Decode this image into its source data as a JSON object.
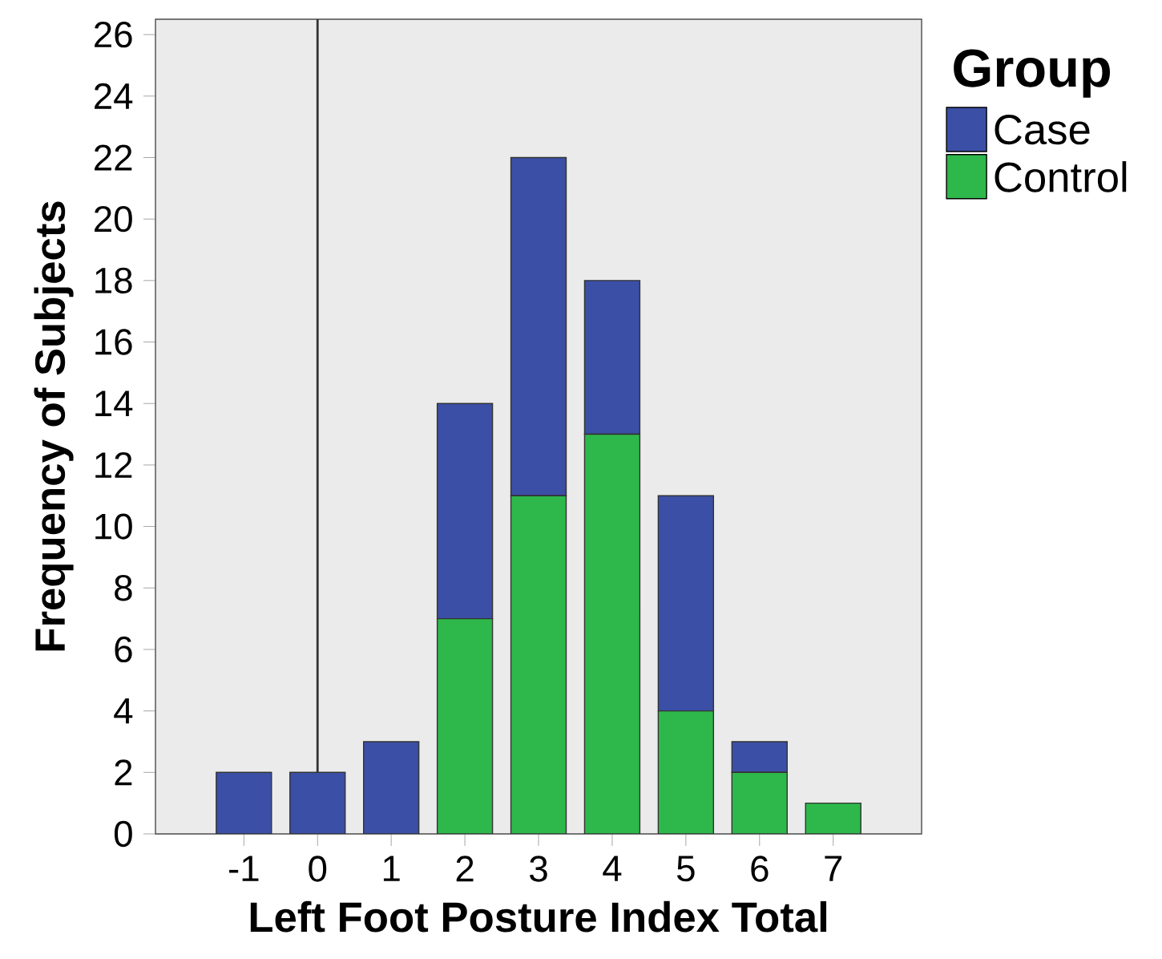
{
  "chart_data": {
    "type": "bar",
    "stacked": true,
    "xlabel": "Left Foot Posture Index Total",
    "ylabel": "Frequency of Subjects",
    "legend_title": "Group",
    "legend": "right",
    "x": [
      -1,
      0,
      1,
      2,
      3,
      4,
      5,
      6,
      7
    ],
    "xlim": [
      -2.2,
      8.2
    ],
    "xticks": [
      -1,
      0,
      1,
      2,
      3,
      4,
      5,
      6,
      7
    ],
    "ylim": [
      0,
      26.5
    ],
    "yticks": [
      0,
      2,
      4,
      6,
      8,
      10,
      12,
      14,
      16,
      18,
      20,
      22,
      24,
      26
    ],
    "series": [
      {
        "name": "Control",
        "color": "#2eb84b",
        "values": [
          0,
          0,
          0,
          7,
          11,
          13,
          4,
          2,
          1
        ]
      },
      {
        "name": "Case",
        "color": "#3b4fa6",
        "values": [
          2,
          2,
          3,
          7,
          11,
          5,
          7,
          1,
          0
        ]
      }
    ],
    "ref_lines": [
      {
        "axis": "x",
        "value": 0,
        "color": "#333333"
      }
    ]
  }
}
